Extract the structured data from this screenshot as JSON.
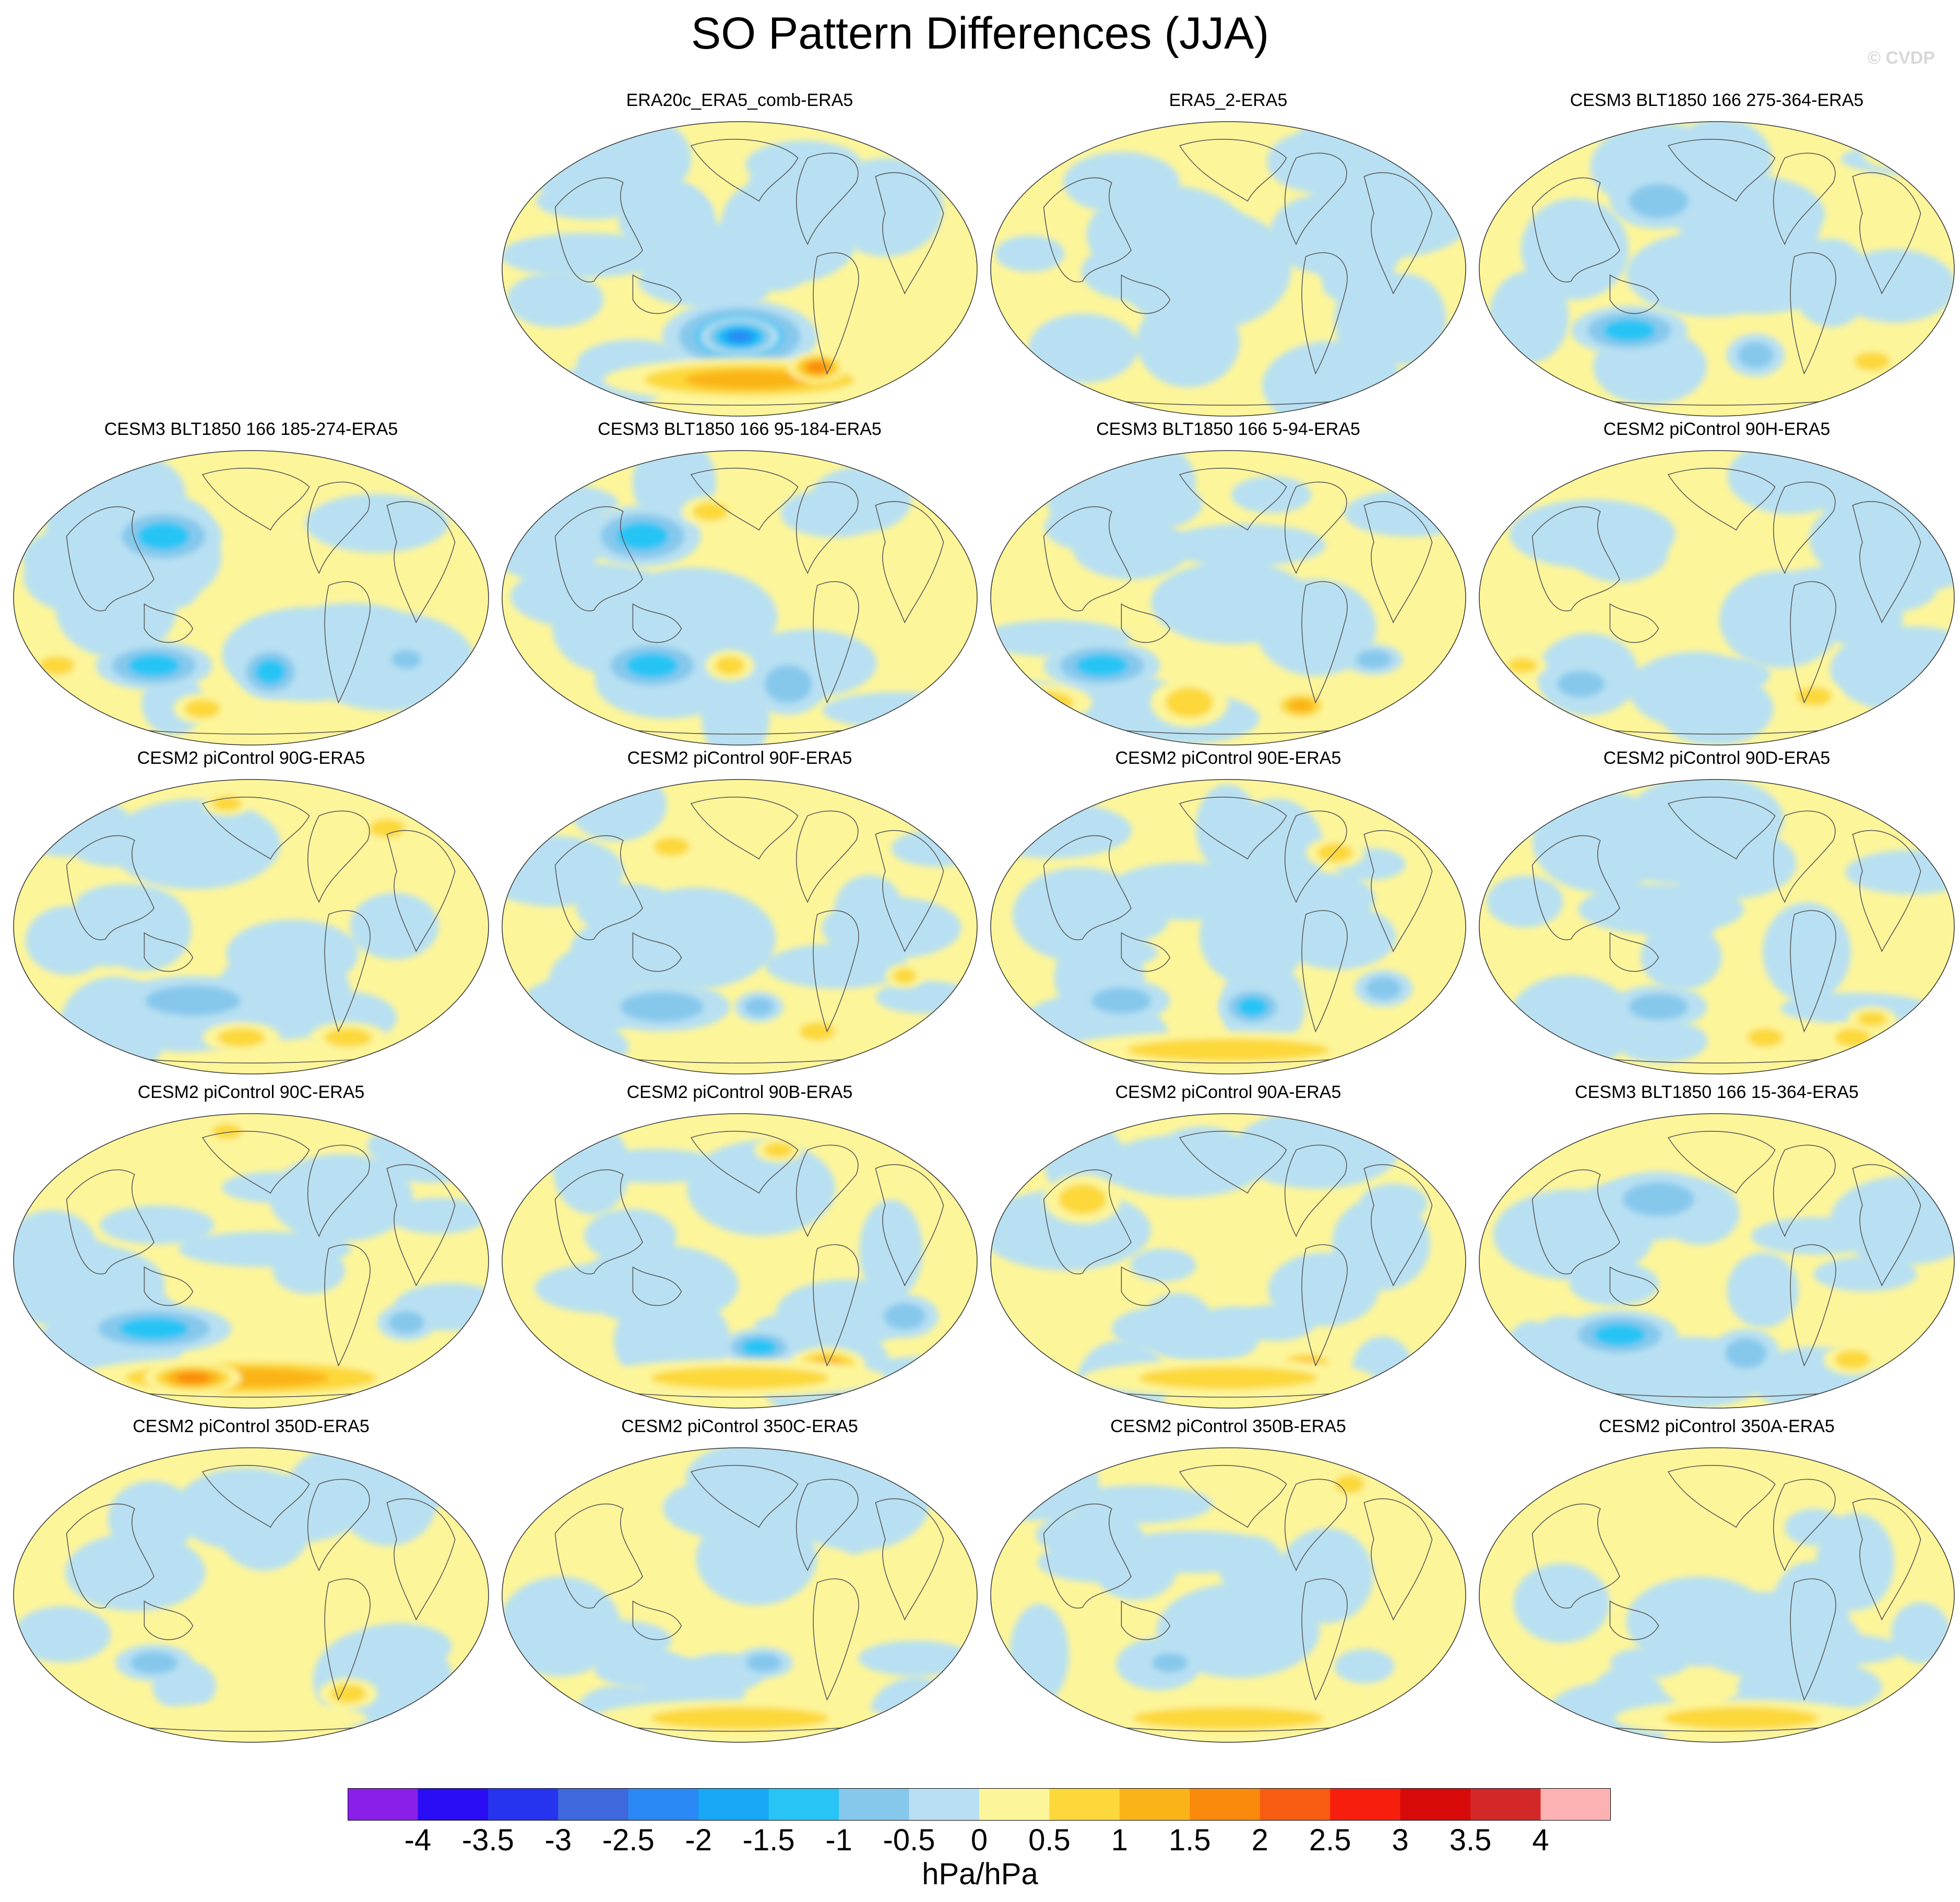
{
  "title": "SO Pattern Differences (JJA)",
  "copyright": "© CVDP",
  "chart_data": {
    "type": "heatmap",
    "description_units": "hPa/hPa",
    "colorbar": {
      "labels": [
        "-4",
        "-3.5",
        "-3",
        "-2.5",
        "-2",
        "-1.5",
        "-1",
        "-0.5",
        "0",
        "0.5",
        "1",
        "1.5",
        "2",
        "2.5",
        "3",
        "3.5",
        "4"
      ],
      "levels": [
        -4,
        -3.5,
        -3,
        -2.5,
        -2,
        -1.5,
        -1,
        -0.5,
        0,
        0.5,
        1,
        1.5,
        2,
        2.5,
        3,
        3.5,
        4
      ],
      "colors": [
        "#8a20e8",
        "#2a0cf5",
        "#2634f0",
        "#3f68dc",
        "#2a88f5",
        "#18a8f5",
        "#28c4f5",
        "#86c8ec",
        "#b8e0f2",
        "#fdf59a",
        "#fcd83a",
        "#fbb418",
        "#f98a0c",
        "#f85c12",
        "#f81e0e",
        "#d80a0a",
        "#d42828",
        "#fcb2b2"
      ]
    },
    "panels": [
      {
        "title": "ERA20c_ERA5_comb-ERA5",
        "row": 0,
        "col": 1,
        "blobs": [
          [
            0.5,
            0.72,
            0.16,
            0.12,
            -2.0
          ],
          [
            0.5,
            0.72,
            0.08,
            0.06,
            -2.5
          ],
          [
            0.52,
            0.86,
            0.3,
            0.07,
            1.5
          ],
          [
            0.66,
            0.82,
            0.06,
            0.05,
            2.0
          ],
          [
            0.35,
            0.34,
            0.1,
            0.12,
            -0.5
          ],
          [
            0.12,
            0.6,
            0.1,
            0.09,
            -0.5
          ],
          [
            0.8,
            0.3,
            0.12,
            0.16,
            -0.5
          ]
        ]
      },
      {
        "title": "ERA5_2-ERA5",
        "row": 0,
        "col": 2,
        "blobs": [
          [
            0.45,
            0.5,
            0.18,
            0.2,
            -0.5
          ],
          [
            0.76,
            0.4,
            0.1,
            0.18,
            -0.5
          ],
          [
            0.28,
            0.22,
            0.12,
            0.1,
            -0.5
          ]
        ]
      },
      {
        "title": "CESM3 BLT1850 166 275-364-ERA5",
        "row": 0,
        "col": 3,
        "blobs": [
          [
            0.32,
            0.7,
            0.12,
            0.08,
            -1.5
          ],
          [
            0.38,
            0.28,
            0.1,
            0.09,
            -1.0
          ],
          [
            0.58,
            0.78,
            0.06,
            0.07,
            -1.0
          ],
          [
            0.82,
            0.8,
            0.06,
            0.05,
            1.0
          ],
          [
            0.85,
            0.12,
            0.05,
            0.05,
            1.0
          ]
        ]
      },
      {
        "title": "CESM3 BLT1850 166 185-274-ERA5",
        "row": 1,
        "col": 0,
        "blobs": [
          [
            0.3,
            0.72,
            0.12,
            0.08,
            -1.5
          ],
          [
            0.54,
            0.74,
            0.07,
            0.09,
            -1.5
          ],
          [
            0.32,
            0.3,
            0.12,
            0.1,
            -1.5
          ],
          [
            0.1,
            0.72,
            0.06,
            0.05,
            1.0
          ],
          [
            0.4,
            0.86,
            0.06,
            0.05,
            1.0
          ],
          [
            0.82,
            0.7,
            0.05,
            0.05,
            -1.0
          ]
        ]
      },
      {
        "title": "CESM3 BLT1850 166 95-184-ERA5",
        "row": 1,
        "col": 1,
        "blobs": [
          [
            0.32,
            0.72,
            0.12,
            0.09,
            -1.5
          ],
          [
            0.3,
            0.3,
            0.12,
            0.1,
            -1.5
          ],
          [
            0.44,
            0.22,
            0.06,
            0.05,
            1.0
          ],
          [
            0.48,
            0.72,
            0.05,
            0.05,
            1.0
          ],
          [
            0.6,
            0.78,
            0.08,
            0.1,
            -1.0
          ]
        ]
      },
      {
        "title": "CESM3 BLT1850 166 5-94-ERA5",
        "row": 1,
        "col": 2,
        "blobs": [
          [
            0.24,
            0.72,
            0.12,
            0.08,
            -1.5
          ],
          [
            0.12,
            0.84,
            0.1,
            0.06,
            1.0
          ],
          [
            0.42,
            0.84,
            0.08,
            0.08,
            1.0
          ],
          [
            0.65,
            0.85,
            0.06,
            0.05,
            1.5
          ],
          [
            0.8,
            0.7,
            0.06,
            0.05,
            -1.0
          ],
          [
            0.3,
            0.34,
            0.12,
            0.1,
            -0.5
          ]
        ]
      },
      {
        "title": "CESM2 piControl 90H-ERA5",
        "row": 1,
        "col": 3,
        "blobs": [
          [
            0.22,
            0.78,
            0.08,
            0.07,
            -1.0
          ],
          [
            0.1,
            0.72,
            0.05,
            0.04,
            1.0
          ],
          [
            0.7,
            0.82,
            0.06,
            0.05,
            1.0
          ],
          [
            0.55,
            0.75,
            0.06,
            0.05,
            -0.5
          ],
          [
            0.3,
            0.35,
            0.1,
            0.1,
            -0.5
          ]
        ]
      },
      {
        "title": "CESM2 piControl 90G-ERA5",
        "row": 2,
        "col": 0,
        "blobs": [
          [
            0.38,
            0.74,
            0.16,
            0.08,
            -1.0
          ],
          [
            0.48,
            0.86,
            0.08,
            0.05,
            1.0
          ],
          [
            0.7,
            0.86,
            0.08,
            0.05,
            1.0
          ],
          [
            0.78,
            0.18,
            0.06,
            0.05,
            1.0
          ],
          [
            0.45,
            0.1,
            0.05,
            0.04,
            1.0
          ]
        ]
      },
      {
        "title": "CESM2 piControl 90F-ERA5",
        "row": 2,
        "col": 1,
        "blobs": [
          [
            0.34,
            0.76,
            0.14,
            0.08,
            -1.0
          ],
          [
            0.54,
            0.76,
            0.05,
            0.05,
            -1.0
          ],
          [
            0.66,
            0.84,
            0.06,
            0.05,
            1.0
          ],
          [
            0.36,
            0.24,
            0.06,
            0.05,
            1.0
          ],
          [
            0.84,
            0.66,
            0.04,
            0.04,
            1.0
          ]
        ]
      },
      {
        "title": "CESM2 piControl 90E-ERA5",
        "row": 2,
        "col": 2,
        "blobs": [
          [
            0.28,
            0.74,
            0.1,
            0.07,
            -1.0
          ],
          [
            0.55,
            0.76,
            0.07,
            0.07,
            -1.5
          ],
          [
            0.5,
            0.9,
            0.34,
            0.06,
            1.0
          ],
          [
            0.82,
            0.7,
            0.06,
            0.06,
            -1.0
          ],
          [
            0.72,
            0.26,
            0.06,
            0.05,
            1.0
          ]
        ]
      },
      {
        "title": "CESM2 piControl 90D-ERA5",
        "row": 2,
        "col": 3,
        "blobs": [
          [
            0.38,
            0.76,
            0.1,
            0.07,
            -1.0
          ],
          [
            0.6,
            0.86,
            0.06,
            0.05,
            1.0
          ],
          [
            0.78,
            0.86,
            0.06,
            0.05,
            1.0
          ],
          [
            0.82,
            0.8,
            0.05,
            0.04,
            1.0
          ],
          [
            0.4,
            0.28,
            0.08,
            0.08,
            -0.5
          ]
        ]
      },
      {
        "title": "CESM2 piControl 90C-ERA5",
        "row": 3,
        "col": 0,
        "blobs": [
          [
            0.3,
            0.72,
            0.16,
            0.08,
            -1.5
          ],
          [
            0.5,
            0.88,
            0.36,
            0.07,
            1.5
          ],
          [
            0.38,
            0.88,
            0.1,
            0.05,
            2.0
          ],
          [
            0.82,
            0.7,
            0.06,
            0.06,
            -1.0
          ],
          [
            0.45,
            0.08,
            0.05,
            0.04,
            1.0
          ]
        ]
      },
      {
        "title": "CESM2 piControl 90B-ERA5",
        "row": 3,
        "col": 1,
        "blobs": [
          [
            0.54,
            0.78,
            0.08,
            0.06,
            -1.5
          ],
          [
            0.68,
            0.84,
            0.08,
            0.06,
            1.5
          ],
          [
            0.5,
            0.88,
            0.3,
            0.06,
            1.0
          ],
          [
            0.84,
            0.68,
            0.07,
            0.07,
            -1.0
          ],
          [
            0.58,
            0.14,
            0.05,
            0.04,
            1.0
          ],
          [
            0.3,
            0.6,
            0.06,
            0.05,
            -0.5
          ]
        ]
      },
      {
        "title": "CESM2 piControl 90A-ERA5",
        "row": 3,
        "col": 2,
        "blobs": [
          [
            0.66,
            0.84,
            0.07,
            0.05,
            1.5
          ],
          [
            0.5,
            0.88,
            0.3,
            0.06,
            1.0
          ],
          [
            0.36,
            0.72,
            0.1,
            0.07,
            -0.5
          ],
          [
            0.6,
            0.7,
            0.08,
            0.06,
            -0.5
          ],
          [
            0.2,
            0.3,
            0.08,
            0.08,
            1.0
          ]
        ]
      },
      {
        "title": "CESM3 BLT1850 166 15-364-ERA5",
        "row": 3,
        "col": 3,
        "blobs": [
          [
            0.3,
            0.74,
            0.12,
            0.08,
            -1.5
          ],
          [
            0.56,
            0.8,
            0.07,
            0.08,
            -1.0
          ],
          [
            0.38,
            0.3,
            0.12,
            0.09,
            -1.0
          ],
          [
            0.78,
            0.82,
            0.06,
            0.05,
            1.0
          ]
        ]
      },
      {
        "title": "CESM2 piControl 350D-ERA5",
        "row": 4,
        "col": 0,
        "blobs": [
          [
            0.3,
            0.72,
            0.08,
            0.06,
            -1.0
          ],
          [
            0.7,
            0.82,
            0.06,
            0.05,
            1.0
          ],
          [
            0.5,
            0.9,
            0.24,
            0.05,
            0.5
          ]
        ]
      },
      {
        "title": "CESM2 piControl 350C-ERA5",
        "row": 4,
        "col": 1,
        "blobs": [
          [
            0.5,
            0.9,
            0.3,
            0.06,
            1.0
          ],
          [
            0.55,
            0.72,
            0.06,
            0.05,
            -1.0
          ],
          [
            0.3,
            0.74,
            0.1,
            0.06,
            -0.5
          ]
        ]
      },
      {
        "title": "CESM2 piControl 350B-ERA5",
        "row": 4,
        "col": 2,
        "blobs": [
          [
            0.5,
            0.9,
            0.32,
            0.06,
            1.0
          ],
          [
            0.38,
            0.72,
            0.06,
            0.05,
            -1.0
          ],
          [
            0.75,
            0.14,
            0.05,
            0.05,
            1.0
          ]
        ]
      },
      {
        "title": "CESM2 piControl 350A-ERA5",
        "row": 4,
        "col": 3,
        "blobs": [
          [
            0.55,
            0.9,
            0.26,
            0.06,
            1.0
          ],
          [
            0.36,
            0.72,
            0.08,
            0.05,
            -0.5
          ],
          [
            0.7,
            0.28,
            0.06,
            0.06,
            -0.5
          ]
        ]
      }
    ]
  }
}
